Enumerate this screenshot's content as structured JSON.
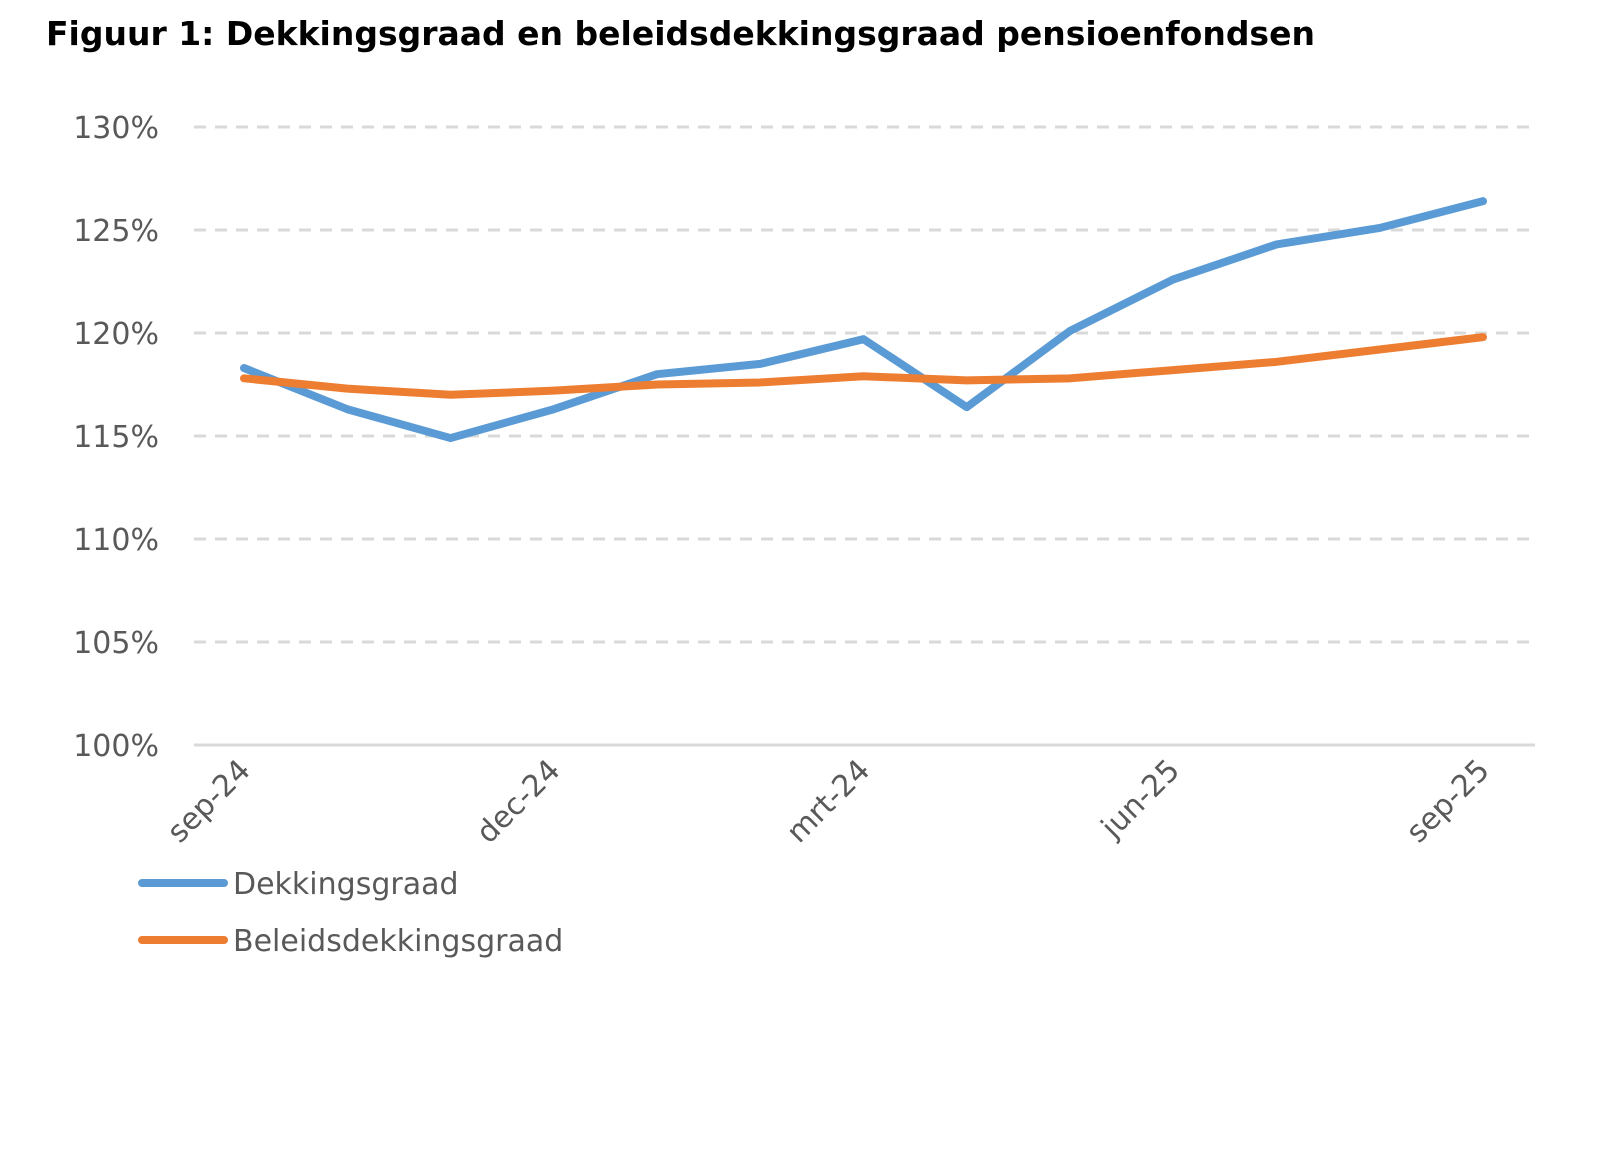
{
  "chart_data": {
    "type": "line",
    "title": "Figuur 1: Dekkingsgraad en beleidsdekkingsgraad pensioenfondsen",
    "xlabel": "",
    "ylabel": "",
    "categories": [
      "sep-24",
      "",
      "",
      "dec-24",
      "",
      "",
      "mrt-24",
      "",
      "",
      "jun-25",
      "",
      "",
      "sep-25"
    ],
    "ylim": [
      100,
      130
    ],
    "yticks": [
      100,
      105,
      110,
      115,
      120,
      125,
      130
    ],
    "ytick_labels": [
      "100%",
      "105%",
      "110%",
      "115%",
      "120%",
      "125%",
      "130%"
    ],
    "grid": true,
    "legend_position": "bottom-left",
    "series": [
      {
        "name": "Dekkingsgraad",
        "color": "#5B9BD5",
        "values": [
          118.3,
          116.3,
          114.9,
          116.3,
          118.0,
          118.5,
          119.7,
          116.4,
          120.1,
          122.6,
          124.3,
          125.1,
          126.4
        ]
      },
      {
        "name": "Beleidsdekkingsgraad",
        "color": "#ED7D31",
        "values": [
          117.8,
          117.3,
          117.0,
          117.2,
          117.5,
          117.6,
          117.9,
          117.7,
          117.8,
          118.2,
          118.6,
          119.2,
          119.8
        ]
      }
    ]
  }
}
